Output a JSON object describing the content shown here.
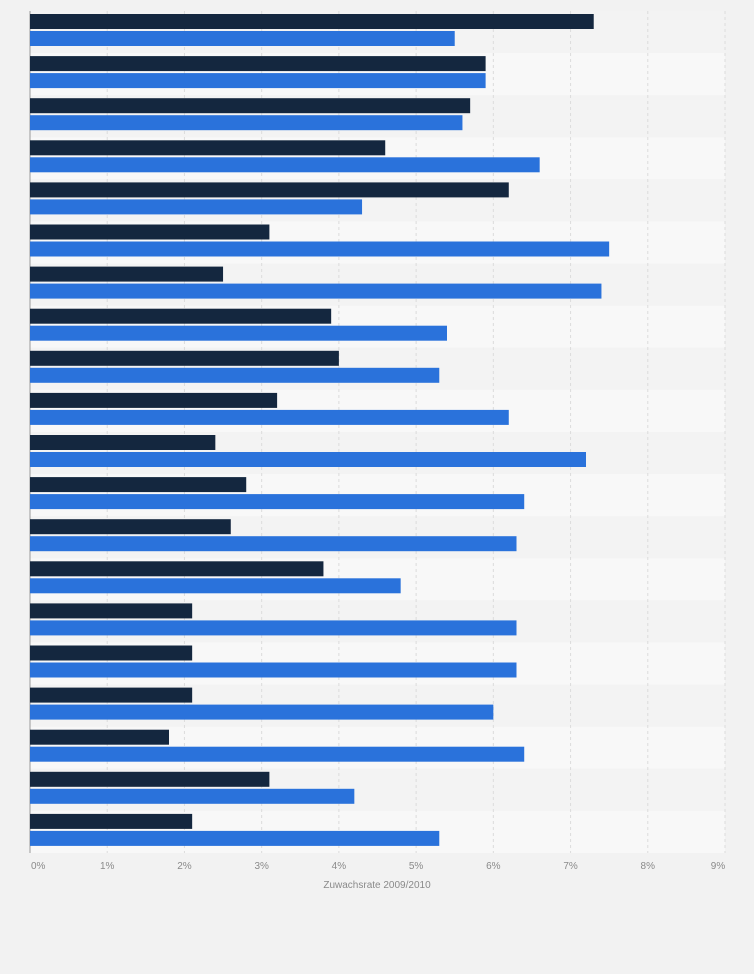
{
  "chart_data": {
    "type": "bar",
    "orientation": "horizontal",
    "xlabel": "Zuwachsrate 2009/2010",
    "xlim": [
      0,
      9
    ],
    "x_ticks": [
      "0%",
      "1%",
      "2%",
      "3%",
      "4%",
      "5%",
      "6%",
      "7%",
      "8%",
      "9%"
    ],
    "grid": true,
    "series": [
      {
        "color": "#14273f",
        "values": [
          7.3,
          5.9,
          5.7,
          4.6,
          6.2,
          3.1,
          2.5,
          3.9,
          4.0,
          3.2,
          2.4,
          2.8,
          2.6,
          3.8,
          2.1,
          2.1,
          2.1,
          1.8,
          3.1,
          2.1
        ]
      },
      {
        "color": "#2a72db",
        "values": [
          5.5,
          5.9,
          5.6,
          6.6,
          4.3,
          7.5,
          7.4,
          5.4,
          5.3,
          6.2,
          7.2,
          6.4,
          6.3,
          4.8,
          6.3,
          6.3,
          6.0,
          6.4,
          4.2,
          5.3
        ]
      }
    ]
  }
}
